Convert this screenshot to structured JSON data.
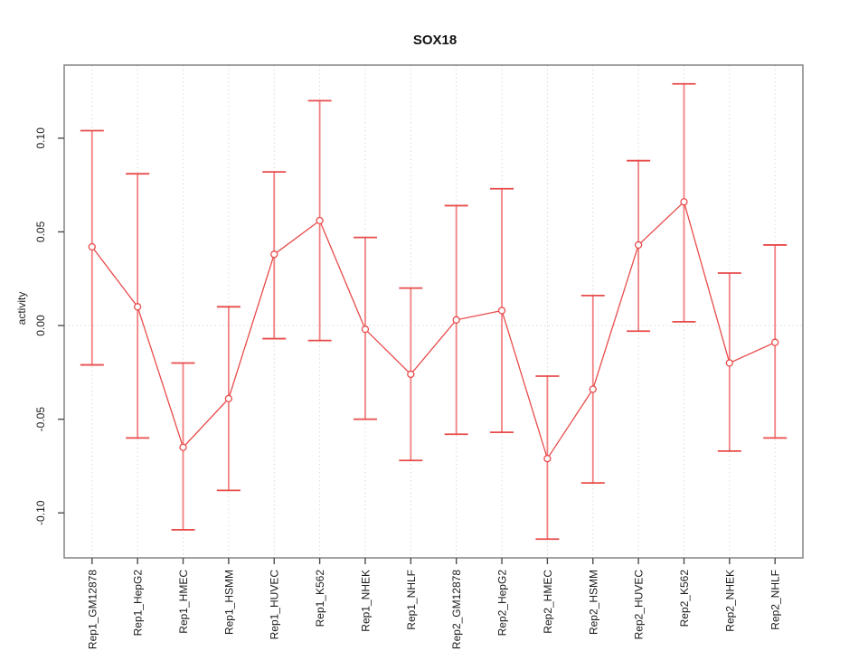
{
  "chart_data": {
    "type": "line",
    "title": "SOX18",
    "xlabel": "",
    "ylabel": "activity",
    "legend": "none",
    "grid": "dotted vertical line at each category; dotted horizontal line at y=0",
    "categories": [
      "Rep1_GM12878",
      "Rep1_HepG2",
      "Rep1_HMEC",
      "Rep1_HSMM",
      "Rep1_HUVEC",
      "Rep1_K562",
      "Rep1_NHEK",
      "Rep1_NHLF",
      "Rep2_GM12878",
      "Rep2_HepG2",
      "Rep2_HMEC",
      "Rep2_HSMM",
      "Rep2_HUVEC",
      "Rep2_K562",
      "Rep2_NHEK",
      "Rep2_NHLF"
    ],
    "series": [
      {
        "name": "activity",
        "values": [
          0.042,
          0.01,
          -0.065,
          -0.039,
          0.038,
          0.056,
          -0.002,
          -0.026,
          0.003,
          0.008,
          -0.071,
          -0.034,
          0.043,
          0.066,
          -0.02,
          -0.009
        ],
        "error_low": [
          -0.021,
          -0.06,
          -0.109,
          -0.088,
          -0.007,
          -0.008,
          -0.05,
          -0.072,
          -0.058,
          -0.057,
          -0.114,
          -0.084,
          -0.003,
          0.002,
          -0.067,
          -0.06
        ],
        "error_high": [
          0.104,
          0.081,
          -0.02,
          0.01,
          0.082,
          0.12,
          0.047,
          0.02,
          0.064,
          0.073,
          -0.027,
          0.016,
          0.088,
          0.129,
          0.028,
          0.043
        ]
      }
    ],
    "ylim": [
      -0.124,
      0.139
    ],
    "yticks": [
      -0.1,
      -0.05,
      0.0,
      0.05,
      0.1
    ],
    "ytick_labels": [
      "-0.10",
      "-0.05",
      "0.00",
      "0.05",
      "0.10"
    ],
    "colors": {
      "series": "#e84b4b",
      "error_bar": "#f28080",
      "grid": "#d9d9d9",
      "box": "#8a8a8a",
      "tick": "#4d4d4d",
      "text": "#1a1a1a",
      "background": "#ffffff"
    }
  }
}
